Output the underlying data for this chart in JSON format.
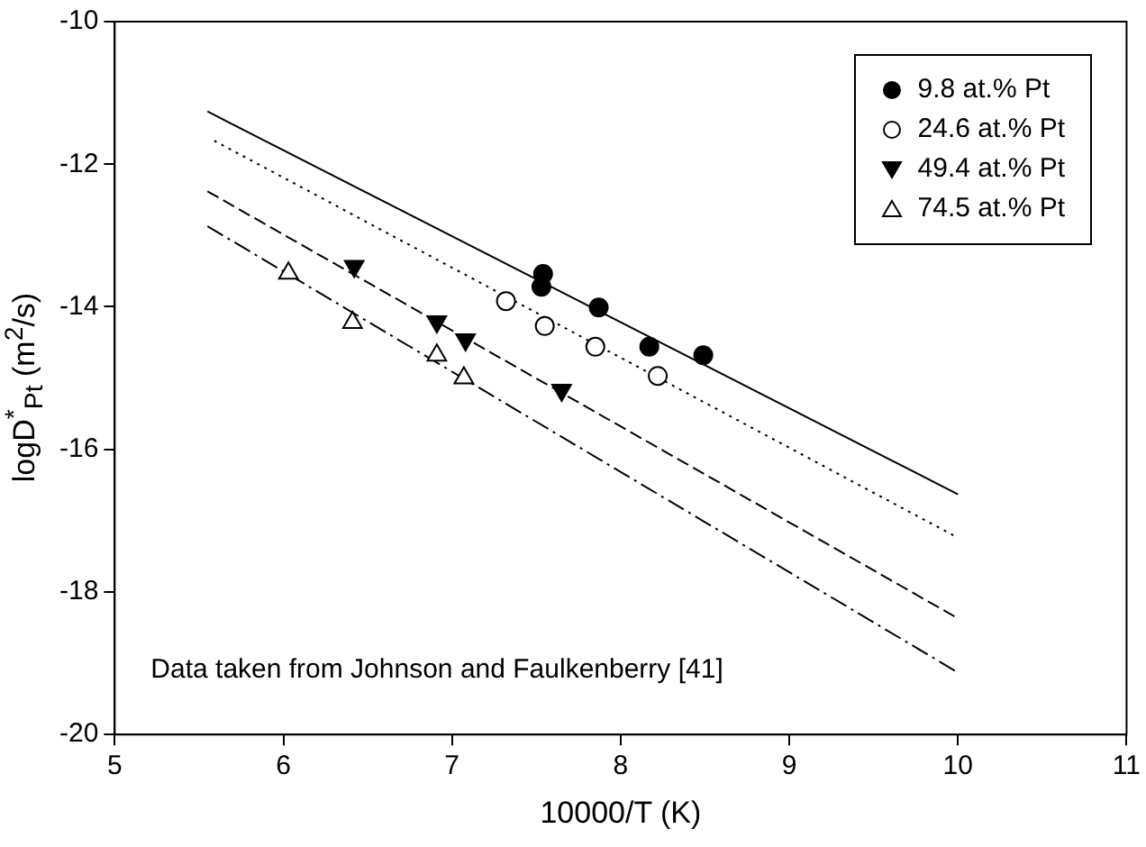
{
  "chart_data": {
    "type": "scatter",
    "xlabel": "10000/T (K)",
    "ylabel": "logD$^{*}$$_{Pt}$ (m$^{2}$/s)",
    "xlim": [
      5,
      11
    ],
    "xticks": [
      5,
      6,
      7,
      8,
      9,
      10,
      11
    ],
    "ylim": [
      -20,
      -10
    ],
    "yticks": [
      -20,
      -18,
      -16,
      -14,
      -12,
      -10
    ],
    "grid": false,
    "legend": "top right",
    "annotations": [
      "Data taken from Johnson and Faulkenberry [41]"
    ],
    "series": [
      {
        "name": "9.8 at.% Pt",
        "type": "scatter",
        "marker": "circle",
        "color": "#000000",
        "x": [
          7.54,
          7.53,
          7.87,
          8.17,
          8.49
        ],
        "values": [
          -13.54,
          -13.72,
          -14.01,
          -14.56,
          -14.68
        ]
      },
      {
        "name": "24.6 at.% Pt",
        "type": "scatter",
        "marker": "circle_open",
        "color": "#000000",
        "x": [
          7.32,
          7.55,
          7.85,
          8.22
        ],
        "values": [
          -13.92,
          -14.27,
          -14.56,
          -14.97
        ]
      },
      {
        "name": "49.4 at.% Pt",
        "type": "scatter",
        "marker": "triangle_down",
        "color": "#000000",
        "x": [
          6.42,
          6.91,
          7.08,
          7.65
        ],
        "values": [
          -13.43,
          -14.21,
          -14.46,
          -15.17
        ]
      },
      {
        "name": "74.5 at.% Pt",
        "type": "scatter",
        "marker": "triangle_open",
        "color": "#000000",
        "x": [
          6.03,
          6.41,
          6.91,
          7.07
        ],
        "values": [
          -13.53,
          -14.22,
          -14.68,
          -15.0
        ]
      },
      {
        "type": "line",
        "line_style": "solid",
        "color": "#000000",
        "x": [
          5.55,
          10
        ],
        "values": [
          -11.26,
          -16.63
        ]
      },
      {
        "type": "line",
        "line_style": "dotted",
        "color": "#000000",
        "x": [
          5.59,
          10
        ],
        "values": [
          -11.67,
          -17.24
        ]
      },
      {
        "type": "line",
        "line_style": "dashed",
        "color": "#000000",
        "x": [
          5.55,
          10
        ],
        "values": [
          -12.38,
          -18.37
        ]
      },
      {
        "type": "line",
        "line_style": "dashdot",
        "color": "#000000",
        "x": [
          5.55,
          10
        ],
        "values": [
          -12.87,
          -19.13
        ]
      }
    ]
  }
}
